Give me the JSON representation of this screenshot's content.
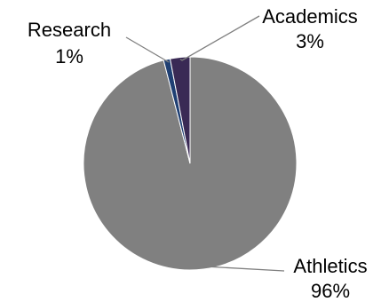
{
  "chart_data": {
    "type": "pie",
    "slices": [
      {
        "label": "Athletics",
        "value": 96,
        "value_label": "96%",
        "color": "#808080"
      },
      {
        "label": "Research",
        "value": 1,
        "value_label": "1%",
        "color": "#1f3f73"
      },
      {
        "label": "Academics",
        "value": 3,
        "value_label": "3%",
        "color": "#3a2a55"
      }
    ],
    "start": "12 o'clock",
    "direction": "clockwise",
    "legend": "none",
    "labels": "category name and percentage beside slices with leader lines"
  }
}
